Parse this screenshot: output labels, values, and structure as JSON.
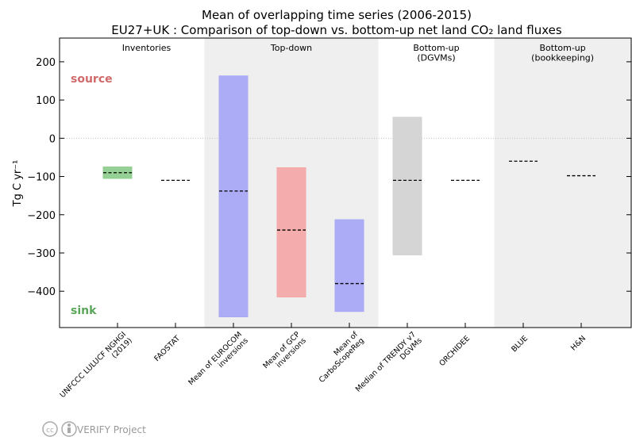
{
  "chart_data": {
    "type": "range-bar",
    "title": "Mean of overlapping time series (2006-2015)",
    "subtitle": "EU27+UK : Comparison of top-down vs. bottom-up net land CO₂ land fluxes",
    "y_label": "Tg C yr⁻¹",
    "annotations": {
      "source": "source",
      "sink": "sink"
    },
    "groups": [
      "Inventories",
      "Top-down",
      "Bottom-up\n(DGVMs)",
      "Bottom-up\n(bookkeeping)"
    ],
    "categories": [
      "UNFCCC LULUCF NGHGI\n(2019)",
      "FAOSTAT",
      "Mean of EUROCOM\ninversions",
      "Mean of GCP\ninversions",
      "Mean of\nCarboScopeReg",
      "Median of TRENDY v7\nDGVMs",
      "ORCHIDEE",
      "BLUE",
      "H&N"
    ],
    "values": [
      -90,
      -110,
      -138,
      -240,
      -380,
      -110,
      -110,
      -60,
      -98
    ],
    "max": [
      -75,
      null,
      163,
      -77,
      -213,
      55,
      null,
      null,
      null
    ],
    "min": [
      -105,
      null,
      -467,
      -415,
      -453,
      -305,
      null,
      null,
      null
    ],
    "colors": [
      "#8fcf8f",
      null,
      "#a8a8f5",
      "#f4a8a8",
      "#a8a8f5",
      "#d3d3d3",
      null,
      null,
      null
    ],
    "ylim": [
      -495,
      262
    ],
    "yticks": [
      {
        "value": -400,
        "label": "−400"
      },
      {
        "value": -300,
        "label": "−300"
      },
      {
        "value": -200,
        "label": "−200"
      },
      {
        "value": -100,
        "label": "−100"
      },
      0,
      100,
      200
    ]
  },
  "footer": "VERIFY Project"
}
